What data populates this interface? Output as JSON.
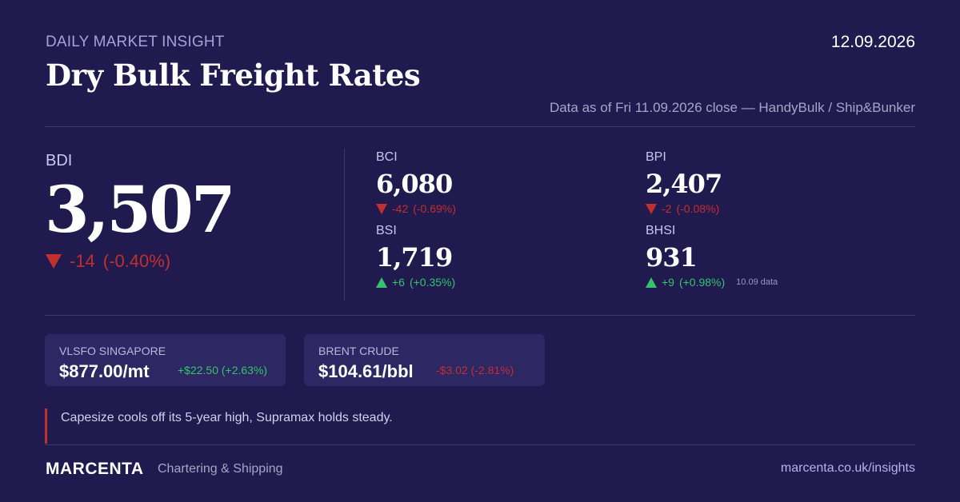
{
  "header": {
    "kicker": "DAILY MARKET INSIGHT",
    "date": "12.09.2026",
    "title": "Dry Bulk Freight Rates",
    "as_of": "Data as of Fri 11.09.2026 close — HandyBulk / Ship&Bunker"
  },
  "main_index": {
    "label": "BDI",
    "value": "3,507",
    "change": "-14",
    "change_pct": "(-0.40%)",
    "direction": "down"
  },
  "sub_indices": [
    {
      "label": "BCI",
      "value": "6,080",
      "change": "-42",
      "change_pct": "(-0.69%)",
      "direction": "down",
      "note": ""
    },
    {
      "label": "BPI",
      "value": "2,407",
      "change": "-2",
      "change_pct": "(-0.08%)",
      "direction": "down",
      "note": ""
    },
    {
      "label": "BSI",
      "value": "1,719",
      "change": "+6",
      "change_pct": "(+0.35%)",
      "direction": "up",
      "note": ""
    },
    {
      "label": "BHSI",
      "value": "931",
      "change": "+9",
      "change_pct": "(+0.98%)",
      "direction": "up",
      "note": "10.09 data"
    }
  ],
  "commodities": [
    {
      "label": "VLSFO SINGAPORE",
      "value": "$877.00/mt",
      "change": "+$22.50 (+2.63%)",
      "direction": "up"
    },
    {
      "label": "BRENT CRUDE",
      "value": "$104.61/bbl",
      "change": "-$3.02 (-2.81%)",
      "direction": "down"
    }
  ],
  "commentary": "Capesize cools off its 5-year high, Supramax holds steady.",
  "footer": {
    "brand": "MARCENTA",
    "tagline": "Chartering & Shipping",
    "url": "marcenta.co.uk/insights"
  },
  "colors": {
    "background": "#201a4e",
    "down": "#c0302f",
    "up": "#34c46c",
    "card": "#2d2763"
  },
  "icons": {
    "down": "triangle-down-icon",
    "up": "triangle-up-icon"
  }
}
